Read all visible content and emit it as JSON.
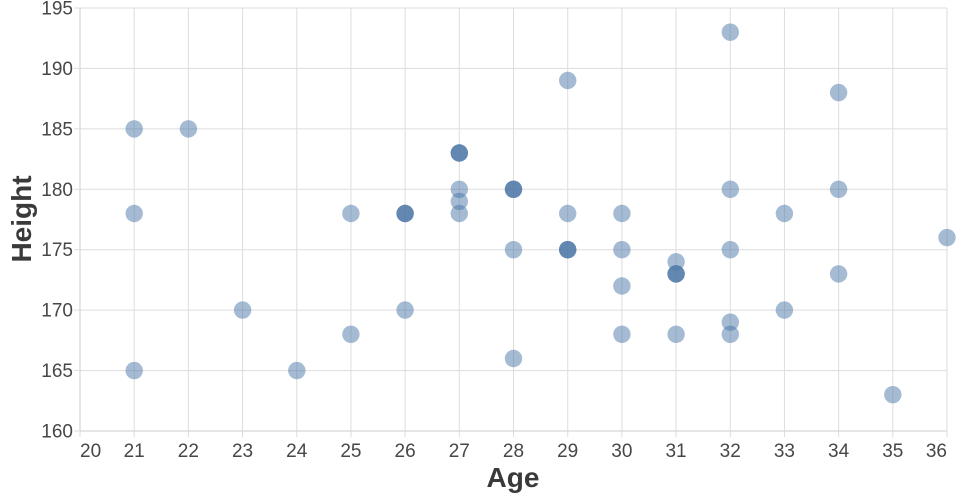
{
  "chart_data": {
    "type": "scatter",
    "title": "",
    "xlabel": "Age",
    "ylabel": "Height",
    "xlim": [
      20,
      36
    ],
    "ylim": [
      160,
      195
    ],
    "x_ticks": [
      20,
      21,
      22,
      23,
      24,
      25,
      26,
      27,
      28,
      29,
      30,
      31,
      32,
      33,
      34,
      35,
      36
    ],
    "y_ticks": [
      160,
      165,
      170,
      175,
      180,
      185,
      190,
      195
    ],
    "grid": true,
    "legend": "none",
    "points_note": "each point is [age, height, overlap_count]; overlap_count>1 renders darker stacked marks",
    "points": [
      [
        21,
        185,
        1
      ],
      [
        21,
        178,
        1
      ],
      [
        21,
        165,
        1
      ],
      [
        22,
        185,
        1
      ],
      [
        23,
        170,
        1
      ],
      [
        24,
        165,
        1
      ],
      [
        25,
        178,
        1
      ],
      [
        25,
        168,
        1
      ],
      [
        26,
        178,
        3
      ],
      [
        26,
        170,
        1
      ],
      [
        27,
        183,
        3
      ],
      [
        27,
        180,
        1
      ],
      [
        27,
        179,
        1
      ],
      [
        27,
        178,
        1
      ],
      [
        28,
        180,
        3
      ],
      [
        28,
        175,
        1
      ],
      [
        28,
        166,
        1
      ],
      [
        29,
        189,
        1
      ],
      [
        29,
        178,
        1
      ],
      [
        29,
        175,
        3
      ],
      [
        30,
        178,
        1
      ],
      [
        30,
        175,
        1
      ],
      [
        30,
        172,
        1
      ],
      [
        30,
        168,
        1
      ],
      [
        31,
        174,
        1
      ],
      [
        31,
        173,
        3
      ],
      [
        31,
        168,
        1
      ],
      [
        32,
        193,
        1
      ],
      [
        32,
        180,
        1
      ],
      [
        32,
        175,
        1
      ],
      [
        32,
        169,
        1
      ],
      [
        32,
        168,
        1
      ],
      [
        33,
        178,
        1
      ],
      [
        33,
        170,
        1
      ],
      [
        34,
        188,
        1
      ],
      [
        34,
        180,
        1
      ],
      [
        34,
        173,
        1
      ],
      [
        35,
        163,
        1
      ],
      [
        36,
        176,
        1
      ]
    ]
  },
  "style": {
    "point_color": "#4c78a8",
    "point_opacity": 0.5,
    "grid_color": "#dddddd",
    "domain_color": "#cccccc",
    "tick_color": "#dddddd",
    "tick_label_color": "#474747",
    "axis_title_color": "#3a3a3a"
  }
}
